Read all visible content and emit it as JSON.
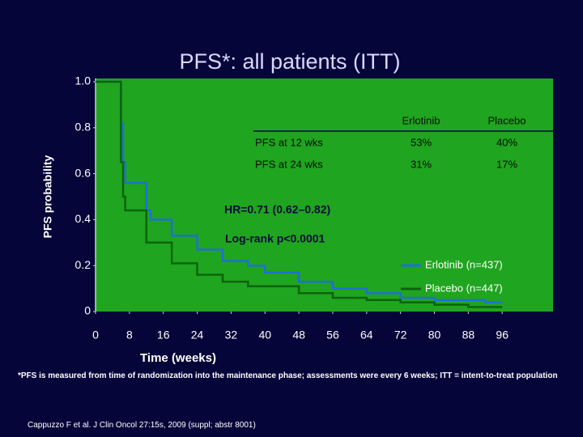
{
  "chart_data": {
    "type": "line",
    "title": "PFS*: all patients (ITT)",
    "y_label": "PFS probability",
    "x_label": "Time (weeks)",
    "xlim": [
      0,
      108
    ],
    "ylim": [
      0,
      1
    ],
    "xticks": [
      0,
      8,
      16,
      24,
      32,
      40,
      48,
      56,
      64,
      72,
      80,
      88,
      96
    ],
    "yticks": [
      0,
      0.2,
      0.4,
      0.6,
      0.8,
      {
        "value": 1,
        "label": "1.0"
      }
    ],
    "series": [
      {
        "name": "Erlotinib (n=437)",
        "color": "#1f6fd6",
        "x": [
          0,
          6,
          6,
          6.5,
          6.5,
          7,
          7,
          12,
          12,
          13,
          13,
          18,
          18,
          24,
          24,
          30,
          30,
          36,
          36,
          40,
          40,
          48,
          48,
          56,
          56,
          64,
          64,
          72,
          72,
          80,
          80,
          92,
          92,
          96
        ],
        "values": [
          1,
          1,
          0.82,
          0.82,
          0.65,
          0.65,
          0.56,
          0.56,
          0.44,
          0.44,
          0.4,
          0.4,
          0.33,
          0.33,
          0.27,
          0.27,
          0.22,
          0.22,
          0.2,
          0.2,
          0.17,
          0.17,
          0.13,
          0.13,
          0.1,
          0.1,
          0.08,
          0.08,
          0.06,
          0.06,
          0.05,
          0.05,
          0.04,
          0.04
        ]
      },
      {
        "name": "Placebo (n=447)",
        "color": "#0c640c",
        "x": [
          0,
          6,
          6,
          6.5,
          6.5,
          7,
          7,
          12,
          12,
          18,
          18,
          24,
          24,
          30,
          30,
          36,
          36,
          48,
          48,
          56,
          56,
          64,
          64,
          72,
          72,
          80,
          80,
          88,
          88,
          96
        ],
        "values": [
          1,
          1,
          0.65,
          0.65,
          0.5,
          0.5,
          0.44,
          0.44,
          0.3,
          0.3,
          0.21,
          0.21,
          0.16,
          0.16,
          0.13,
          0.13,
          0.11,
          0.11,
          0.08,
          0.08,
          0.06,
          0.06,
          0.05,
          0.05,
          0.04,
          0.04,
          0.03,
          0.03,
          0.02,
          0.02
        ]
      }
    ],
    "table": {
      "columns": [
        "Erlotinib",
        "Placebo"
      ],
      "rows": [
        {
          "label": "PFS at 12 wks",
          "cells": [
            "53%",
            "40%"
          ]
        },
        {
          "label": "PFS at 24 wks",
          "cells": [
            "31%",
            "17%"
          ]
        }
      ]
    },
    "annotations": [
      "HR=0.71 (0.62–0.82)",
      "Log-rank p<0.0001"
    ]
  },
  "footnote": "*PFS is measured from time of randomization into the maintenance phase; assessments were every 6 weeks; ITT = intent-to-treat population",
  "citation": "Cappuzzo F et al. J Clin Oncol 27:15s, 2009 (suppl; abstr 8001)"
}
